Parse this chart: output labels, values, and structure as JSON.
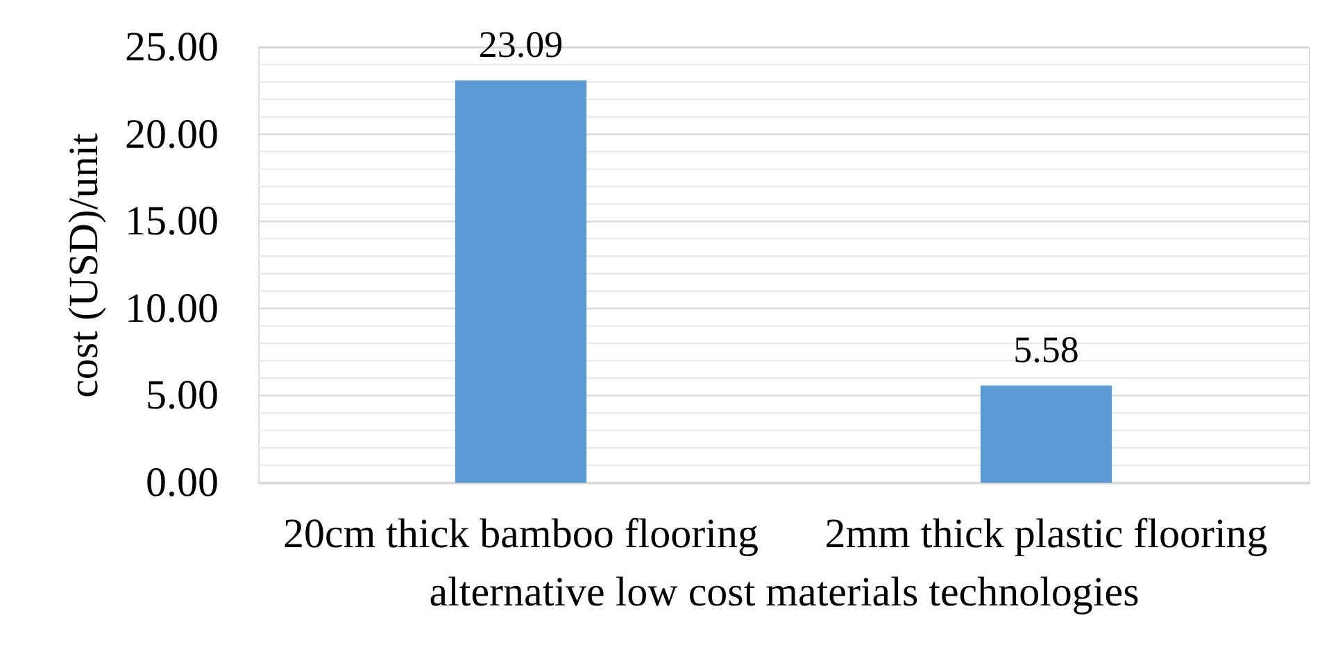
{
  "chart_data": {
    "type": "bar",
    "categories": [
      "20cm thick bamboo flooring",
      "2mm thick plastic flooring"
    ],
    "values": [
      23.09,
      5.58
    ],
    "color": "#5b9bd5",
    "xlabel": "alternative low cost materials technologies",
    "ylabel": "cost (USD)/unit",
    "ylim": [
      0,
      25
    ],
    "yticks": [
      {
        "value": 0,
        "label": "0.00"
      },
      {
        "value": 1,
        "label": null
      },
      {
        "value": 2,
        "label": null
      },
      {
        "value": 3,
        "label": null
      },
      {
        "value": 4,
        "label": null
      },
      {
        "value": 5,
        "label": "5.00"
      },
      {
        "value": 6,
        "label": null
      },
      {
        "value": 7,
        "label": null
      },
      {
        "value": 8,
        "label": null
      },
      {
        "value": 9,
        "label": null
      },
      {
        "value": 10,
        "label": "10.00"
      },
      {
        "value": 11,
        "label": null
      },
      {
        "value": 12,
        "label": null
      },
      {
        "value": 13,
        "label": null
      },
      {
        "value": 14,
        "label": null
      },
      {
        "value": 15,
        "label": "15.00"
      },
      {
        "value": 16,
        "label": null
      },
      {
        "value": 17,
        "label": null
      },
      {
        "value": 18,
        "label": null
      },
      {
        "value": 19,
        "label": null
      },
      {
        "value": 20,
        "label": "20.00"
      },
      {
        "value": 21,
        "label": null
      },
      {
        "value": 22,
        "label": null
      },
      {
        "value": 23,
        "label": null
      },
      {
        "value": 24,
        "label": null
      },
      {
        "value": 25,
        "label": "25.00"
      }
    ],
    "grid": "y",
    "data_labels": true
  }
}
